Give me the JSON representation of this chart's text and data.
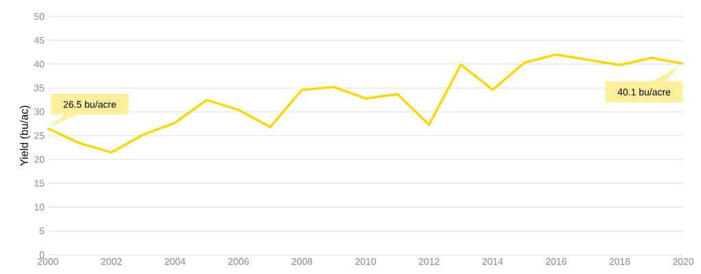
{
  "chart_data": {
    "type": "line",
    "ylabel": "Yield (bu/ac)",
    "x": [
      2000,
      2001,
      2002,
      2003,
      2004,
      2005,
      2006,
      2007,
      2008,
      2009,
      2010,
      2011,
      2012,
      2013,
      2014,
      2015,
      2016,
      2017,
      2018,
      2019,
      2020
    ],
    "series": [
      {
        "color": "#fcd800",
        "values": [
          26.5,
          23.4,
          21.5,
          25.2,
          27.7,
          32.5,
          30.4,
          26.8,
          34.6,
          35.2,
          32.8,
          33.7,
          27.3,
          39.9,
          34.6,
          40.3,
          42.0,
          40.9,
          39.8,
          41.3,
          40.1
        ]
      }
    ],
    "xlim": [
      2000,
      2020
    ],
    "xticks": [
      2000,
      2002,
      2004,
      2006,
      2008,
      2010,
      2012,
      2014,
      2016,
      2018,
      2020
    ],
    "ylim": [
      0,
      50
    ],
    "yticks": [
      0,
      5,
      10,
      15,
      20,
      25,
      30,
      35,
      40,
      45,
      50
    ],
    "grid": "y",
    "marker": "none",
    "line_style": "solid",
    "annotations": [
      {
        "text": "26.5 bu/acre",
        "x": 2000,
        "y": 26.5
      },
      {
        "text": "40.1 bu/acre",
        "x": 2020,
        "y": 40.1
      }
    ]
  }
}
